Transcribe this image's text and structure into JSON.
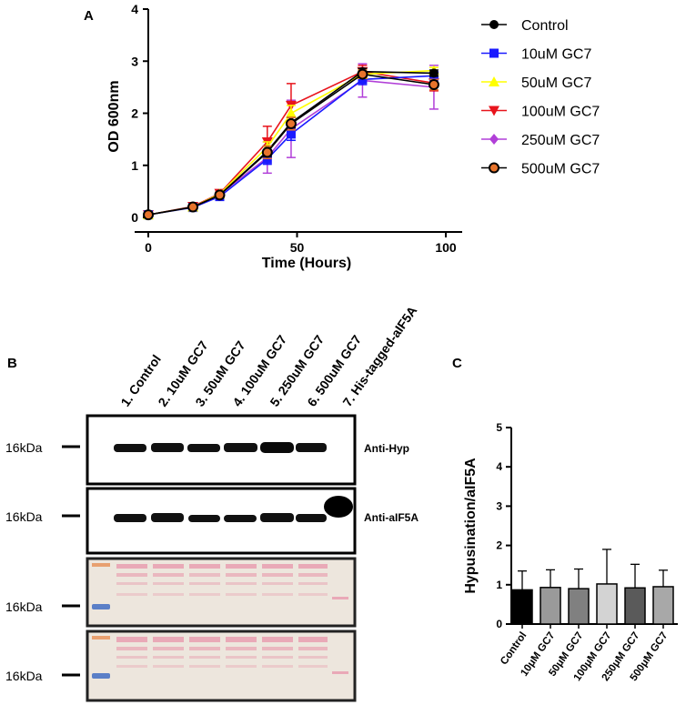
{
  "panels": {
    "a": "A",
    "b": "B",
    "c": "C"
  },
  "chart_data": [
    {
      "type": "line",
      "title": "",
      "xlabel": "Time (Hours)",
      "ylabel": "OD 600nm",
      "xlim": [
        0,
        100
      ],
      "ylim": [
        0,
        4
      ],
      "xticks": [
        "0",
        "50",
        "100"
      ],
      "yticks": [
        "0",
        "1",
        "2",
        "3",
        "4"
      ],
      "x": [
        0,
        15,
        24,
        40,
        48,
        72,
        96
      ],
      "legend_position": "right",
      "series": [
        {
          "name": "Control",
          "color": "#000000",
          "marker": "circle",
          "values": [
            0.05,
            0.2,
            0.43,
            1.27,
            1.82,
            2.8,
            2.77
          ],
          "errors": [
            0.01,
            0.02,
            0.03,
            0.1,
            0.1,
            0.06,
            0.06
          ]
        },
        {
          "name": "10uM GC7",
          "color": "#1a1aff",
          "marker": "square",
          "values": [
            0.05,
            0.19,
            0.4,
            1.12,
            1.6,
            2.65,
            2.72
          ],
          "errors": [
            0.01,
            0.02,
            0.03,
            0.1,
            0.12,
            0.1,
            0.08
          ]
        },
        {
          "name": "50uM GC7",
          "color": "#ffff00",
          "marker": "triangle-up",
          "values": [
            0.05,
            0.2,
            0.45,
            1.35,
            2.0,
            2.75,
            2.82
          ],
          "errors": [
            0.01,
            0.02,
            0.03,
            0.1,
            0.15,
            0.08,
            0.06
          ]
        },
        {
          "name": "100uM GC7",
          "color": "#e8141c",
          "marker": "triangle-down",
          "values": [
            0.05,
            0.21,
            0.46,
            1.45,
            2.15,
            2.8,
            2.58
          ],
          "errors": [
            0.01,
            0.02,
            0.03,
            0.3,
            0.42,
            0.12,
            0.15
          ]
        },
        {
          "name": "250uM GC7",
          "color": "#b13fd8",
          "marker": "diamond",
          "values": [
            0.05,
            0.2,
            0.44,
            1.15,
            1.7,
            2.63,
            2.5
          ],
          "errors": [
            0.01,
            0.02,
            0.03,
            0.3,
            0.55,
            0.32,
            0.42
          ]
        },
        {
          "name": "500uM GC7",
          "color": "#e8742c",
          "marker": "circle-outline",
          "values": [
            0.05,
            0.2,
            0.43,
            1.25,
            1.8,
            2.75,
            2.55
          ],
          "errors": [
            0.01,
            0.02,
            0.03,
            0.12,
            0.12,
            0.08,
            0.1
          ]
        }
      ]
    },
    {
      "type": "bar",
      "title": "",
      "xlabel": "",
      "ylabel": "Hypusination/aIF5A",
      "ylim": [
        0,
        5
      ],
      "yticks": [
        "0",
        "1",
        "2",
        "3",
        "4",
        "5"
      ],
      "categories": [
        "Control",
        "10μM GC7",
        "50μM GC7",
        "100μM GC7",
        "250μM GC7",
        "500μM GC7"
      ],
      "values": [
        0.87,
        0.93,
        0.9,
        1.02,
        0.92,
        0.95
      ],
      "errors": [
        0.48,
        0.45,
        0.5,
        0.88,
        0.6,
        0.42
      ],
      "colors": [
        "#000000",
        "#9a9a9a",
        "#808080",
        "#d3d3d3",
        "#5a5a5a",
        "#a8a8a8"
      ]
    }
  ],
  "blot": {
    "lanes": [
      "1. Control",
      "2. 10uM GC7",
      "3. 50uM GC7",
      "4. 100uM GC7",
      "5. 250uM GC7",
      "6. 500uM GC7",
      "7. His-tagged-aIF5A"
    ],
    "marker_label": "16kDa",
    "row_labels": [
      "Anti-Hyp",
      "Anti-aIF5A"
    ]
  }
}
